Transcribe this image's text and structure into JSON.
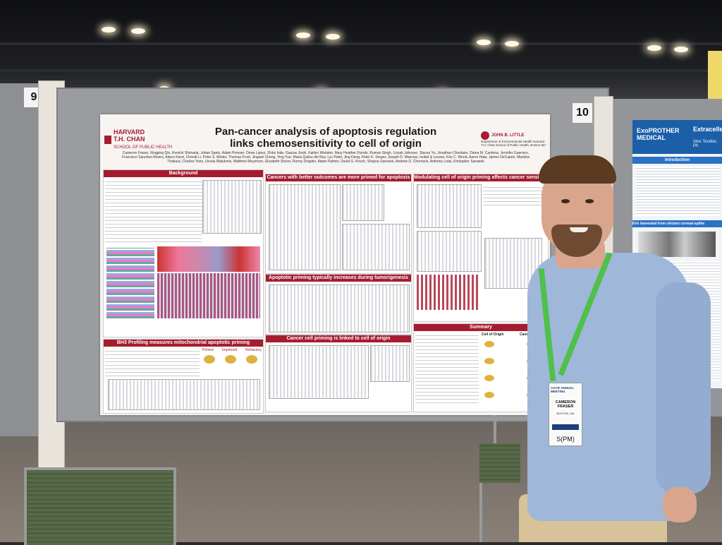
{
  "scene": {
    "board_numbers": {
      "left": "9",
      "right": "10"
    }
  },
  "poster": {
    "title_line1": "Pan-cancer analysis of apoptosis regulation",
    "title_line2": "links chemosensitivity to cell of origin",
    "institution": {
      "name1": "HARVARD",
      "name2": "T.H. CHAN",
      "sub": "SCHOOL OF PUBLIC HEALTH"
    },
    "center_logo": {
      "name": "JOHN B. LITTLE",
      "sub": "Department of Environmental Health Harvard T.H. Chan School of Public Health, Boston MA"
    },
    "authors": "Cameron Fraser, Xingping Qin, Kenichi Shimada, Johan Spetz, Adam Presser, Omar Lopez, Zintis Inde, Gaurav Joshi, Kaitlyn Webster, Mary Heather Flondo, Ruman Singh, Lissah Johnson, Stacey Yu, Jonathan Chonlaire, Diana M. Cardona, Jennifer Guerrero, Francisco Sanchez-Rivera, Alison Karst, Chendi Li, Peter S. Winter, Thomas Frost, Jingwei Cheng, Ying Yue, Maria Quiles del Rey, Lyc Patel, Jing Deng, Peter K. Sorger, Joseph D. Mancias, Isobel & Losses, Kris C. Wood, Aaron Hata, James DeCaprio, Marisha Thakura, Charles Yoon, Ursula Matulonis, Matthew Meyerson, Elizabeth Stover, Ronny Drapkin, Adam Palmer, David G. Kirsch, Shayna Sarosiek, Andrew D. Chernack, Anthony Letai, Kristopher Sarosiek",
    "sections": {
      "background": "Background",
      "better_outcomes": "Cancers with better outcomes are more primed for apoptosis",
      "modulating": "Modulating cell of origin priming affects cancer sensitivity",
      "tumorigenesis": "Apoptotic priming typically increases during tumorigenesis",
      "bh3": "BH3 Profiling measures mitochondrial apoptotic priming",
      "linked": "Cancer cell priming is linked to cell of origin",
      "summary": "Summary"
    },
    "bh3_sub": {
      "primed": "Primed",
      "unprimed": "Unprimed",
      "refractory": "Refractory"
    },
    "summary_sub": {
      "cell_of_origin": "Cell of Origin",
      "cancer_cell": "Cancer Cell"
    }
  },
  "neighbor_poster": {
    "logo": "ExoPROTHER MEDICAL",
    "title": "Extracelle",
    "author": "Alex Tendler, Ph",
    "section1": "Introduction",
    "section2": "EVs harvested from chicken corneal epithe"
  },
  "badge": {
    "header": "AACR ANNUAL MEETING",
    "name": "CAMERON FRASER",
    "city": "BOSTON, MA",
    "sticker": "S(PM)"
  }
}
